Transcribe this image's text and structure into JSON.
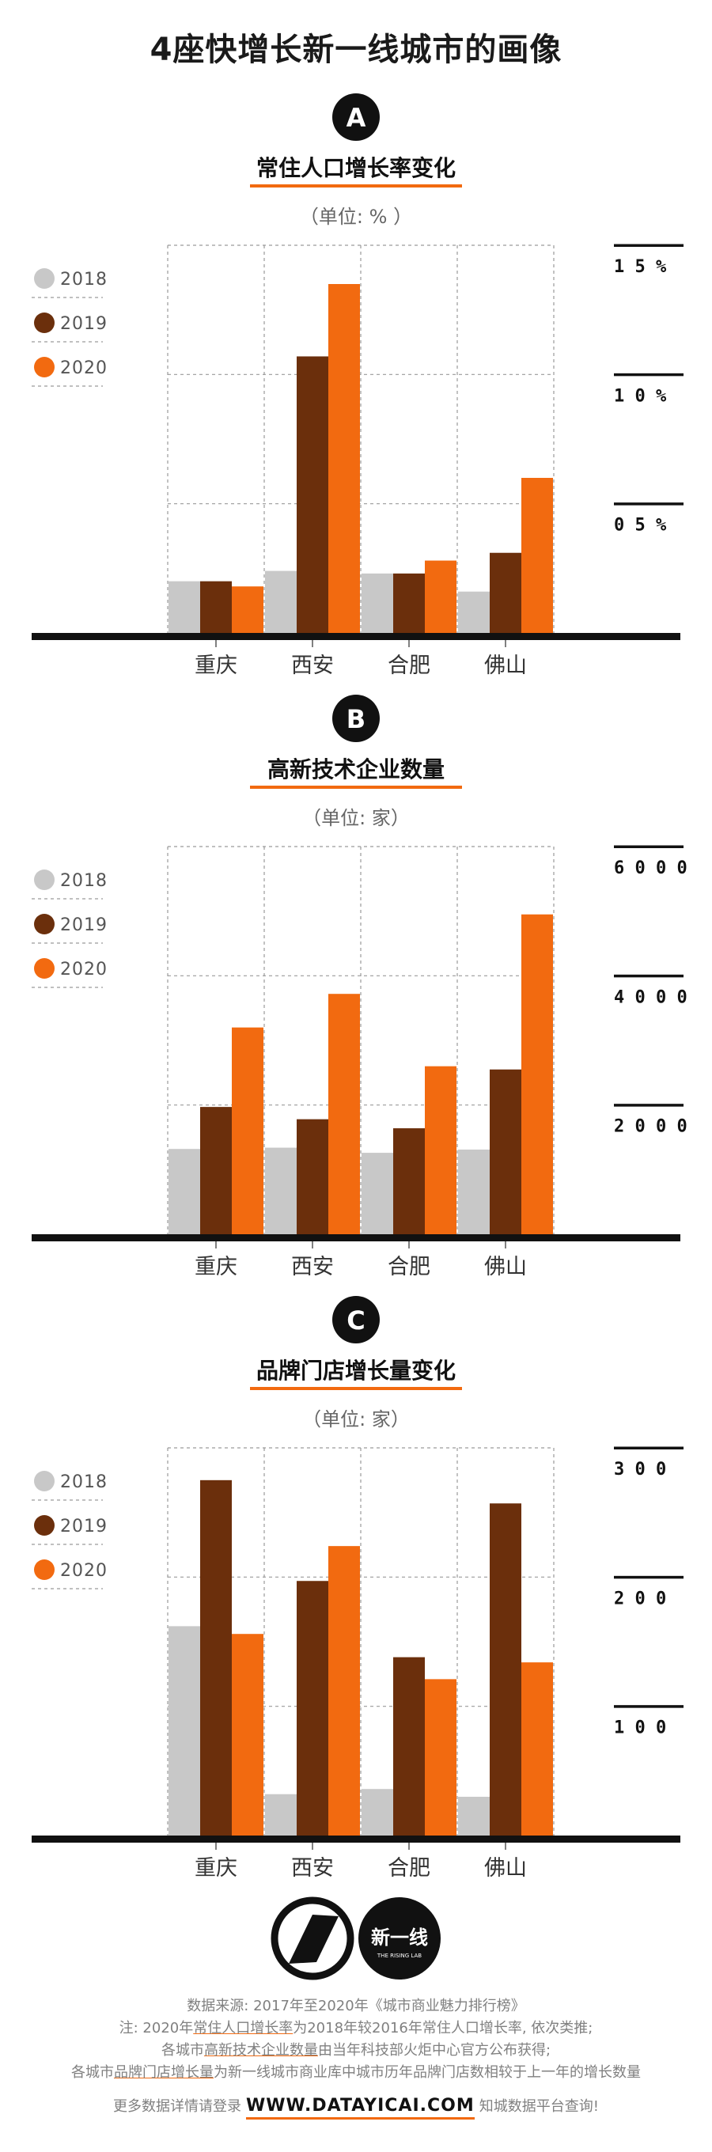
{
  "page_title": "4座快增长新一线城市的画像",
  "colors": {
    "y2018": "#c8c8c8",
    "y2019": "#6b2f0c",
    "y2020": "#f26a10",
    "axis": "#111111"
  },
  "chart_data": [
    {
      "type": "bar",
      "badge": "A",
      "title": "常住人口增长率变化",
      "subtitle": "（单位: % ）",
      "categories": [
        "重庆",
        "西安",
        "合肥",
        "佛山"
      ],
      "series": [
        {
          "name": "2018",
          "values": [
            2.0,
            2.4,
            2.3,
            1.6
          ]
        },
        {
          "name": "2019",
          "values": [
            2.0,
            10.7,
            2.3,
            3.1
          ]
        },
        {
          "name": "2020",
          "values": [
            1.8,
            13.5,
            2.8,
            6.0
          ]
        }
      ],
      "ylim": [
        0,
        15
      ],
      "yticks": [
        5,
        10,
        15
      ],
      "ytick_labels": [
        "0 5 %",
        "1 0 %",
        "1 5 %"
      ],
      "legend_position": "left"
    },
    {
      "type": "bar",
      "badge": "B",
      "title": "高新技术企业数量",
      "subtitle": "（单位: 家）",
      "categories": [
        "重庆",
        "西安",
        "合肥",
        "佛山"
      ],
      "series": [
        {
          "name": "2018",
          "values": [
            1320,
            1340,
            1260,
            1310
          ]
        },
        {
          "name": "2019",
          "values": [
            1970,
            1780,
            1640,
            2550
          ]
        },
        {
          "name": "2020",
          "values": [
            3200,
            3720,
            2600,
            4950
          ]
        }
      ],
      "ylim": [
        0,
        6000
      ],
      "yticks": [
        2000,
        4000,
        6000
      ],
      "ytick_labels": [
        "2 0 0 0",
        "4 0 0 0",
        "6 0 0 0"
      ],
      "legend_position": "left"
    },
    {
      "type": "bar",
      "badge": "C",
      "title": "品牌门店增长量变化",
      "subtitle": "（单位: 家）",
      "categories": [
        "重庆",
        "西安",
        "合肥",
        "佛山"
      ],
      "series": [
        {
          "name": "2018",
          "values": [
            162,
            32,
            36,
            30
          ]
        },
        {
          "name": "2019",
          "values": [
            275,
            197,
            138,
            257
          ]
        },
        {
          "name": "2020",
          "values": [
            156,
            224,
            121,
            134
          ]
        }
      ],
      "ylim": [
        0,
        300
      ],
      "yticks": [
        100,
        200,
        300
      ],
      "ytick_labels": [
        "1 0 0",
        "2 0 0",
        "3 0 0"
      ],
      "legend_position": "left"
    }
  ],
  "logos": {
    "brand_text": "新一线",
    "brand_subtext": "THE RISING LAB"
  },
  "footer": {
    "line1": "数据来源: 2017年至2020年《城市商业魅力排行榜》",
    "line2_pre": "注: 2020年",
    "line2_ul": "常住人口增长率",
    "line2_post": "为2018年较2016年常住人口增长率, 依次类推;",
    "line3_pre": "各城市",
    "line3_ul": "高新技术企业数量",
    "line3_post": "由当年科技部火炬中心官方公布获得;",
    "line4_pre": "各城市",
    "line4_ul": "品牌门店增长量",
    "line4_post": "为新一线城市商业库中城市历年品牌门店数相较于上一年的增长数量",
    "cta_pre": "更多数据详情请登录",
    "cta_url": "WWW.DATAYICAI.COM",
    "cta_post": "知城数据平台查询!"
  }
}
